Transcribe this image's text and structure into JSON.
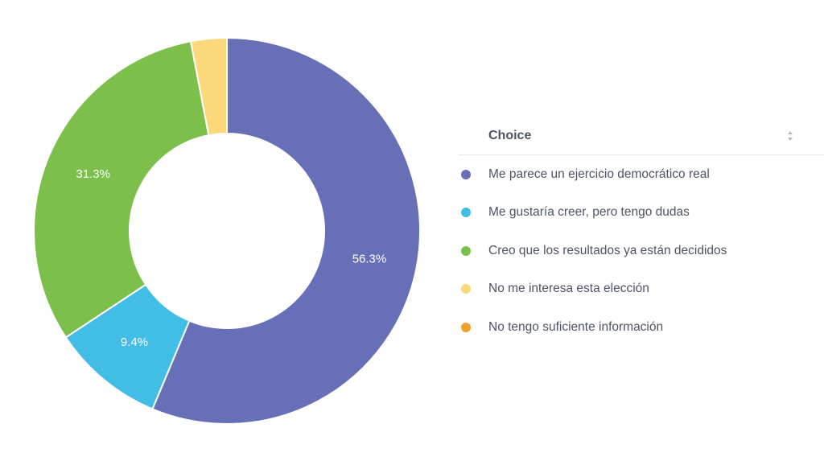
{
  "chart_data": {
    "type": "pie",
    "variant": "donut",
    "categories": [
      "Me parece un ejercicio democrático real",
      "Me gustaría creer, pero tengo dudas",
      "Creo que los resultados ya están decididos",
      "No me interesa esta elección",
      "No tengo suficiente información"
    ],
    "values": [
      56.3,
      9.4,
      31.3,
      3.0,
      0.0
    ],
    "data_labels": [
      "56.3%",
      "9.4%",
      "31.3%",
      "",
      ""
    ],
    "colors": [
      "#6770b6",
      "#42bde5",
      "#7cc04b",
      "#fbd87a",
      "#f1a02c"
    ],
    "legend_position": "right"
  },
  "legend": {
    "header": "Choice",
    "sort_icon": "sort-icon"
  }
}
